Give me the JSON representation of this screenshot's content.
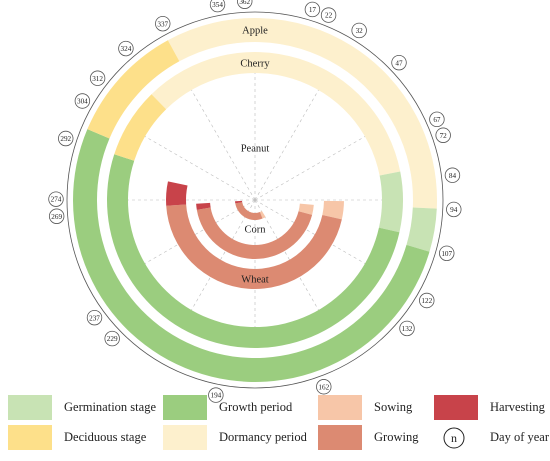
{
  "crops": [
    {
      "name": "Apple",
      "segments": [
        {
          "stage": "dormancy",
          "from": 336,
          "to": 94
        },
        {
          "stage": "germination",
          "from": 94,
          "to": 108
        },
        {
          "stage": "growth",
          "from": 108,
          "to": 297
        },
        {
          "stage": "deciduous",
          "from": 297,
          "to": 336
        }
      ]
    },
    {
      "name": "Cherry",
      "segments": [
        {
          "stage": "dormancy",
          "from": 320,
          "to": 80
        },
        {
          "stage": "germination",
          "from": 80,
          "to": 104
        },
        {
          "stage": "growth",
          "from": 104,
          "to": 292
        },
        {
          "stage": "deciduous",
          "from": 292,
          "to": 320
        }
      ]
    },
    {
      "name": "Wheat",
      "segments": [
        {
          "stage": "sowing",
          "from": 92,
          "to": 104
        },
        {
          "stage": "growing",
          "from": 104,
          "to": 270
        },
        {
          "stage": "harvesting",
          "from": 270,
          "to": 286
        }
      ]
    },
    {
      "name": "Peanut",
      "segments": [
        {
          "stage": "sowing",
          "from": 96,
          "to": 106
        },
        {
          "stage": "growing",
          "from": 106,
          "to": 264
        },
        {
          "stage": "harvesting",
          "from": 264,
          "to": 270
        }
      ]
    },
    {
      "name": "Corn",
      "segments": [
        {
          "stage": "sowing",
          "from": 150,
          "to": 160
        },
        {
          "stage": "growing",
          "from": 160,
          "to": 264
        },
        {
          "stage": "harvesting",
          "from": 264,
          "to": 270
        }
      ]
    }
  ],
  "day_markers": [
    362,
    17,
    22,
    32,
    47,
    67,
    72,
    84,
    94,
    107,
    122,
    132,
    162,
    194,
    229,
    237,
    269,
    274,
    292,
    304,
    312,
    324,
    337,
    354
  ],
  "legend": [
    {
      "key": "germination",
      "label": "Germination stage",
      "color": "#c8e3b4"
    },
    {
      "key": "growth",
      "label": "Growth period",
      "color": "#9bcd7f"
    },
    {
      "key": "sowing",
      "label": "Sowing",
      "color": "#f7c6a8"
    },
    {
      "key": "harvesting",
      "label": "Harvesting",
      "color": "#c8434a"
    },
    {
      "key": "deciduous",
      "label": "Deciduous stage",
      "color": "#fde08a"
    },
    {
      "key": "dormancy",
      "label": "Dormancy period",
      "color": "#fdf0cd"
    },
    {
      "key": "growing",
      "label": "Growing",
      "color": "#dc8a72"
    },
    {
      "key": "day",
      "label": "Day of year",
      "symbol": "n"
    }
  ]
}
